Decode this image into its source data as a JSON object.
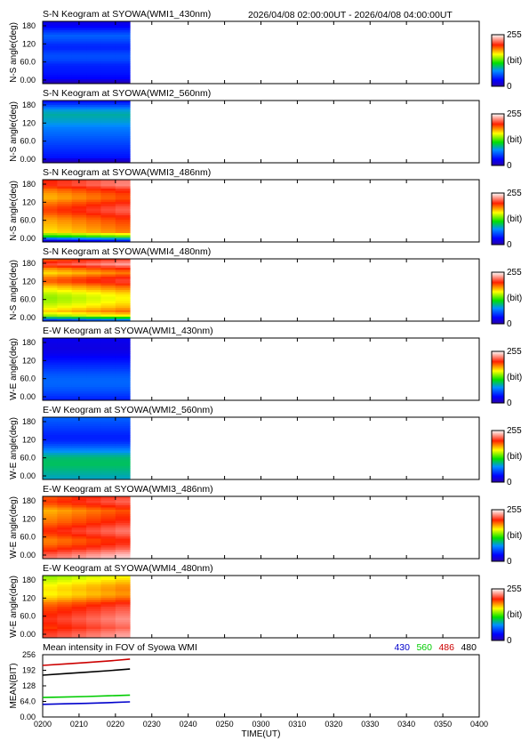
{
  "header": {
    "time_range": "2026/04/08 02:00:00UT - 2026/04/08 04:00:00UT"
  },
  "chart_data": [
    {
      "type": "heatmap",
      "title": "S-N Keogram at SYOWA(WMI1_430nm)",
      "ylabel": "N-S angle(deg)",
      "yticks": [
        "180",
        "120",
        "60.0",
        "0.00"
      ],
      "ylim": [
        0,
        180
      ],
      "colorbar": {
        "max": "255",
        "unit": "(bit)",
        "min": "0"
      },
      "data_extent_utc": [
        "0200",
        "0224"
      ],
      "palette": "rainbow",
      "intensity_profile_bit": [
        20,
        30,
        45,
        60,
        55,
        45,
        40,
        50,
        55,
        50,
        40,
        38,
        35,
        30,
        5
      ],
      "trend_bit": 0
    },
    {
      "type": "heatmap",
      "title": "S-N Keogram at SYOWA(WMI2_560nm)",
      "ylabel": "N-S angle(deg)",
      "yticks": [
        "180",
        "120",
        "60.0",
        "0.00"
      ],
      "ylim": [
        0,
        180
      ],
      "colorbar": {
        "max": "255",
        "unit": "(bit)",
        "min": "0"
      },
      "data_extent_utc": [
        "0200",
        "0224"
      ],
      "palette": "rainbow",
      "intensity_profile_bit": [
        35,
        55,
        80,
        90,
        85,
        80,
        70,
        65,
        60,
        55,
        50,
        45,
        40,
        35,
        5
      ],
      "trend_bit": 0
    },
    {
      "type": "heatmap",
      "title": "S-N Keogram at SYOWA(WMI3_486nm)",
      "ylabel": "N-S angle(deg)",
      "yticks": [
        "180",
        "120",
        "60.0",
        "0.00"
      ],
      "ylim": [
        0,
        180
      ],
      "colorbar": {
        "max": "255",
        "unit": "(bit)",
        "min": "0"
      },
      "data_extent_utc": [
        "0200",
        "0224"
      ],
      "palette": "warm",
      "intensity_profile_bit": [
        215,
        218,
        200,
        190,
        185,
        195,
        205,
        210,
        200,
        190,
        185,
        180,
        175,
        120,
        30
      ],
      "trend_bit": 20
    },
    {
      "type": "heatmap",
      "title": "S-N Keogram at SYOWA(WMI4_480nm)",
      "ylabel": "N-S angle(deg)",
      "yticks": [
        "180",
        "120",
        "60.0",
        "0.00"
      ],
      "ylim": [
        0,
        180
      ],
      "colorbar": {
        "max": "255",
        "unit": "(bit)",
        "min": "0"
      },
      "data_extent_utc": [
        "0200",
        "0224"
      ],
      "palette": "warm",
      "intensity_profile_bit": [
        205,
        225,
        195,
        175,
        195,
        205,
        185,
        170,
        155,
        150,
        155,
        165,
        180,
        150,
        60
      ],
      "trend_bit": 20
    },
    {
      "type": "heatmap",
      "title": "E-W Keogram at SYOWA(WMI1_430nm)",
      "ylabel": "W-E angle(deg)",
      "yticks": [
        "180",
        "120",
        "60.0",
        "0.00"
      ],
      "ylim": [
        0,
        180
      ],
      "colorbar": {
        "max": "255",
        "unit": "(bit)",
        "min": "0"
      },
      "data_extent_utc": [
        "0200",
        "0224"
      ],
      "palette": "rainbow",
      "intensity_profile_bit": [
        25,
        22,
        20,
        22,
        28,
        35,
        42,
        48,
        55,
        60,
        62,
        60,
        55,
        48,
        40
      ],
      "trend_bit": 0
    },
    {
      "type": "heatmap",
      "title": "E-W Keogram at SYOWA(WMI2_560nm)",
      "ylabel": "W-E angle(deg)",
      "yticks": [
        "180",
        "120",
        "60.0",
        "0.00"
      ],
      "ylim": [
        0,
        180
      ],
      "colorbar": {
        "max": "255",
        "unit": "(bit)",
        "min": "0"
      },
      "data_extent_utc": [
        "0200",
        "0224"
      ],
      "palette": "rainbow",
      "intensity_profile_bit": [
        60,
        55,
        50,
        45,
        40,
        40,
        50,
        65,
        80,
        95,
        100,
        100,
        95,
        90,
        85
      ],
      "trend_bit": 0
    },
    {
      "type": "heatmap",
      "title": "E-W Keogram at SYOWA(WMI3_486nm)",
      "ylabel": "W-E angle(deg)",
      "yticks": [
        "180",
        "120",
        "60.0",
        "0.00"
      ],
      "ylim": [
        0,
        180
      ],
      "colorbar": {
        "max": "255",
        "unit": "(bit)",
        "min": "0"
      },
      "data_extent_utc": [
        "0200",
        "0224"
      ],
      "palette": "warm",
      "intensity_profile_bit": [
        205,
        210,
        200,
        185,
        190,
        195,
        200,
        210,
        215,
        205,
        195,
        200,
        210,
        225,
        235
      ],
      "trend_bit": 20
    },
    {
      "type": "heatmap",
      "title": "E-W Keogram at SYOWA(WMI4_480nm)",
      "ylabel": "W-E angle(deg)",
      "yticks": [
        "180",
        "120",
        "60.0",
        "0.00"
      ],
      "ylim": [
        0,
        180
      ],
      "colorbar": {
        "max": "255",
        "unit": "(bit)",
        "min": "0"
      },
      "data_extent_utc": [
        "0200",
        "0224"
      ],
      "palette": "warm",
      "intensity_profile_bit": [
        150,
        160,
        170,
        175,
        170,
        180,
        195,
        205,
        210,
        215,
        220,
        215,
        210,
        220,
        225
      ],
      "trend_bit": 20
    },
    {
      "type": "line",
      "title": "Mean intensity in FOV of Syowa WMI",
      "ylabel": "MEAN(BIT)",
      "xlabel": "TIME(UT)",
      "ylim": [
        0,
        256
      ],
      "yticks": [
        "256",
        "192",
        "128",
        "64.0",
        "0.00"
      ],
      "xticks": [
        "0200",
        "0210",
        "0220",
        "0230",
        "0240",
        "0250",
        "0300",
        "0310",
        "0320",
        "0330",
        "0340",
        "0350",
        "0400"
      ],
      "xlim": [
        "0200",
        "0400"
      ],
      "x": [
        "0200",
        "0206",
        "0212",
        "0218",
        "0224"
      ],
      "series": [
        {
          "name": "430",
          "color": "#0000cc",
          "values": [
            52,
            54,
            56,
            59,
            62
          ]
        },
        {
          "name": "560",
          "color": "#00cc00",
          "values": [
            80,
            82,
            84,
            87,
            90
          ]
        },
        {
          "name": "486",
          "color": "#cc0000",
          "values": [
            212,
            218,
            224,
            230,
            238
          ]
        },
        {
          "name": "480",
          "color": "#000000",
          "values": [
            172,
            178,
            184,
            190,
            197
          ]
        }
      ]
    }
  ]
}
